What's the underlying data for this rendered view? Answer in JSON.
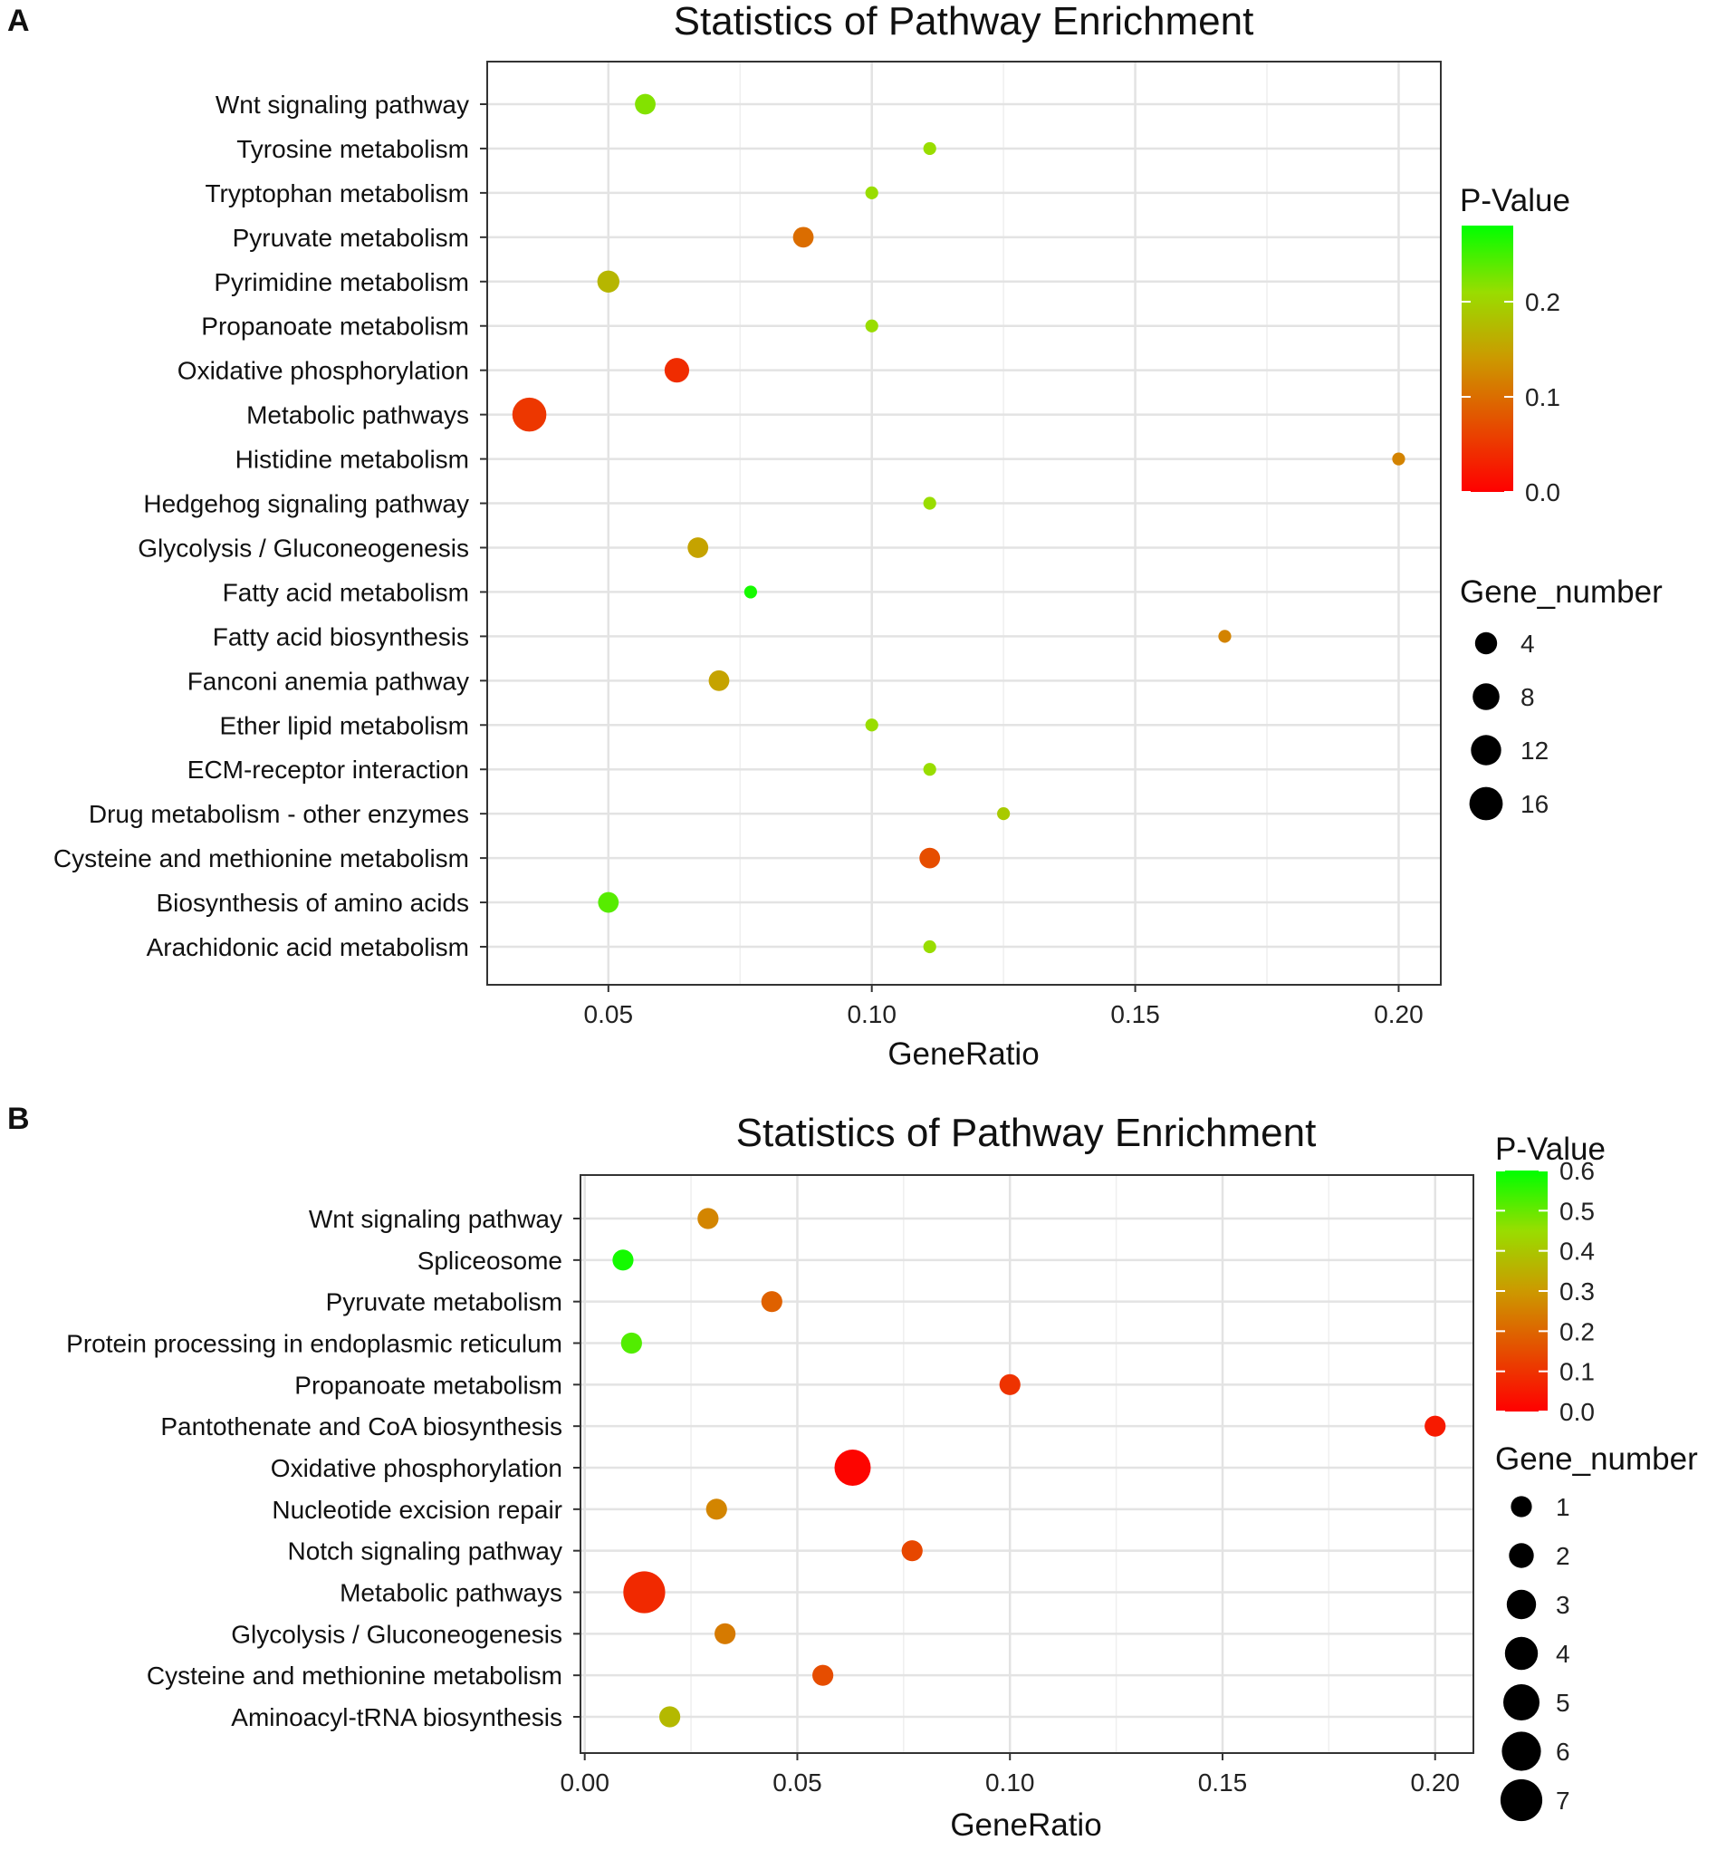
{
  "chart_data": [
    {
      "panel_label": "A",
      "type": "scatter",
      "title": "Statistics of Pathway Enrichment",
      "xlabel": "GeneRatio",
      "ylabel": "",
      "xlim": [
        0.027,
        0.208
      ],
      "xticks": [
        0.05,
        0.1,
        0.15,
        0.2
      ],
      "xtick_labels": [
        "0.05",
        "0.10",
        "0.15",
        "0.20"
      ],
      "grid": true,
      "color_legend": {
        "title": "P-Value",
        "min": 0.0,
        "max": 0.28,
        "ticks": [
          0.2,
          0.1,
          0.0
        ],
        "tick_labels": [
          "0.2",
          "0.1",
          "0.0"
        ],
        "colors": [
          "#ff0000",
          "#00ff00"
        ]
      },
      "size_legend": {
        "title": "Gene_number",
        "values": [
          4,
          8,
          12,
          16
        ],
        "labels": [
          "4",
          "8",
          "12",
          "16"
        ]
      },
      "points": [
        {
          "pathway": "Wnt signaling pathway",
          "gene_ratio": 0.057,
          "p_value": 0.22,
          "gene_number": 3
        },
        {
          "pathway": "Tyrosine metabolism",
          "gene_ratio": 0.111,
          "p_value": 0.21,
          "gene_number": 1
        },
        {
          "pathway": "Tryptophan metabolism",
          "gene_ratio": 0.1,
          "p_value": 0.21,
          "gene_number": 1
        },
        {
          "pathway": "Pyruvate metabolism",
          "gene_ratio": 0.087,
          "p_value": 0.1,
          "gene_number": 3
        },
        {
          "pathway": "Pyrimidine metabolism",
          "gene_ratio": 0.05,
          "p_value": 0.17,
          "gene_number": 4
        },
        {
          "pathway": "Propanoate metabolism",
          "gene_ratio": 0.1,
          "p_value": 0.21,
          "gene_number": 1
        },
        {
          "pathway": "Oxidative phosphorylation",
          "gene_ratio": 0.063,
          "p_value": 0.04,
          "gene_number": 6
        },
        {
          "pathway": "Metabolic pathways",
          "gene_ratio": 0.035,
          "p_value": 0.05,
          "gene_number": 17
        },
        {
          "pathway": "Histidine metabolism",
          "gene_ratio": 0.2,
          "p_value": 0.12,
          "gene_number": 1
        },
        {
          "pathway": "Hedgehog signaling pathway",
          "gene_ratio": 0.111,
          "p_value": 0.21,
          "gene_number": 1
        },
        {
          "pathway": "Glycolysis / Gluconeogenesis",
          "gene_ratio": 0.067,
          "p_value": 0.15,
          "gene_number": 3
        },
        {
          "pathway": "Fatty acid metabolism",
          "gene_ratio": 0.077,
          "p_value": 0.27,
          "gene_number": 1
        },
        {
          "pathway": "Fatty acid biosynthesis",
          "gene_ratio": 0.167,
          "p_value": 0.12,
          "gene_number": 1
        },
        {
          "pathway": "Fanconi anemia pathway",
          "gene_ratio": 0.071,
          "p_value": 0.15,
          "gene_number": 3
        },
        {
          "pathway": "Ether lipid metabolism",
          "gene_ratio": 0.1,
          "p_value": 0.21,
          "gene_number": 1
        },
        {
          "pathway": "ECM-receptor interaction",
          "gene_ratio": 0.111,
          "p_value": 0.21,
          "gene_number": 1
        },
        {
          "pathway": "Drug metabolism - other enzymes",
          "gene_ratio": 0.125,
          "p_value": 0.19,
          "gene_number": 1
        },
        {
          "pathway": "Cysteine and methionine metabolism",
          "gene_ratio": 0.111,
          "p_value": 0.07,
          "gene_number": 3
        },
        {
          "pathway": "Biosynthesis of amino acids",
          "gene_ratio": 0.05,
          "p_value": 0.24,
          "gene_number": 3
        },
        {
          "pathway": "Arachidonic acid metabolism",
          "gene_ratio": 0.111,
          "p_value": 0.21,
          "gene_number": 1
        }
      ]
    },
    {
      "panel_label": "B",
      "type": "scatter",
      "title": "Statistics of Pathway Enrichment",
      "xlabel": "GeneRatio",
      "ylabel": "",
      "xlim": [
        -0.001,
        0.209
      ],
      "xticks": [
        0.0,
        0.05,
        0.1,
        0.15,
        0.2
      ],
      "xtick_labels": [
        "0.00",
        "0.05",
        "0.10",
        "0.15",
        "0.20"
      ],
      "grid": true,
      "color_legend": {
        "title": "P-Value",
        "min": 0.0,
        "max": 0.6,
        "ticks": [
          0.6,
          0.5,
          0.4,
          0.3,
          0.2,
          0.1,
          0.0
        ],
        "tick_labels": [
          "0.6",
          "0.5",
          "0.4",
          "0.3",
          "0.2",
          "0.1",
          "0.0"
        ],
        "colors": [
          "#ff0000",
          "#00ff00"
        ]
      },
      "size_legend": {
        "title": "Gene_number",
        "values": [
          1,
          2,
          3,
          4,
          5,
          6,
          7
        ],
        "labels": [
          "1",
          "2",
          "3",
          "4",
          "5",
          "6",
          "7"
        ]
      },
      "points": [
        {
          "pathway": "Wnt signaling pathway",
          "gene_ratio": 0.029,
          "p_value": 0.26,
          "gene_number": 1
        },
        {
          "pathway": "Spliceosome",
          "gene_ratio": 0.009,
          "p_value": 0.58,
          "gene_number": 1
        },
        {
          "pathway": "Pyruvate metabolism",
          "gene_ratio": 0.044,
          "p_value": 0.19,
          "gene_number": 1
        },
        {
          "pathway": "Protein processing in endoplasmic reticulum",
          "gene_ratio": 0.011,
          "p_value": 0.52,
          "gene_number": 1
        },
        {
          "pathway": "Propanoate metabolism",
          "gene_ratio": 0.1,
          "p_value": 0.1,
          "gene_number": 1
        },
        {
          "pathway": "Pantothenate and CoA biosynthesis",
          "gene_ratio": 0.2,
          "p_value": 0.05,
          "gene_number": 1
        },
        {
          "pathway": "Oxidative phosphorylation",
          "gene_ratio": 0.063,
          "p_value": 0.01,
          "gene_number": 5
        },
        {
          "pathway": "Nucleotide excision repair",
          "gene_ratio": 0.031,
          "p_value": 0.26,
          "gene_number": 1
        },
        {
          "pathway": "Notch signaling pathway",
          "gene_ratio": 0.077,
          "p_value": 0.14,
          "gene_number": 1
        },
        {
          "pathway": "Metabolic pathways",
          "gene_ratio": 0.014,
          "p_value": 0.08,
          "gene_number": 7
        },
        {
          "pathway": "Glycolysis / Gluconeogenesis",
          "gene_ratio": 0.033,
          "p_value": 0.24,
          "gene_number": 1
        },
        {
          "pathway": "Cysteine and methionine metabolism",
          "gene_ratio": 0.056,
          "p_value": 0.15,
          "gene_number": 1
        },
        {
          "pathway": "Aminoacyl-tRNA biosynthesis",
          "gene_ratio": 0.02,
          "p_value": 0.37,
          "gene_number": 1
        }
      ]
    }
  ]
}
